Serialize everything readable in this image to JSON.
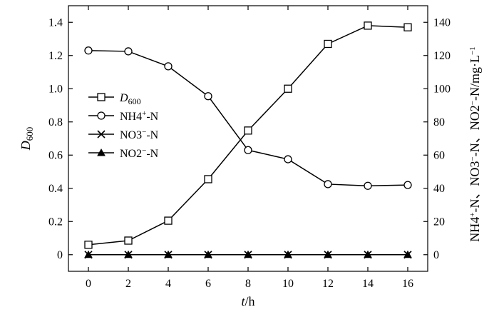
{
  "chart_data": {
    "type": "line",
    "x": [
      0,
      2,
      4,
      6,
      8,
      10,
      12,
      14,
      16
    ],
    "xlabel": "t/h",
    "xlim": [
      -1,
      17
    ],
    "xticks": [
      0,
      2,
      4,
      6,
      8,
      10,
      12,
      14,
      16
    ],
    "ylabel_left": "D600",
    "ylim_left": [
      -0.1,
      1.5
    ],
    "yticks_left": [
      0,
      0.2,
      0.4,
      0.6,
      0.8,
      1.0,
      1.2,
      1.4
    ],
    "ytick_labels_left": [
      "0",
      "0.2",
      "0.4",
      "0.6",
      "0.8",
      "1.0",
      "1.2",
      "1.4"
    ],
    "ylabel_right": "NH4+-N、NO3−-N、NO2−-N/mg·L−1",
    "ylim_right": [
      -10,
      150
    ],
    "yticks_right": [
      0,
      20,
      40,
      60,
      80,
      100,
      120,
      140
    ],
    "legend_position": "left-middle",
    "grid": false,
    "series": [
      {
        "name": "D600",
        "axis": "left",
        "marker": "open-square",
        "values": [
          0.06,
          0.085,
          0.205,
          0.455,
          0.748,
          1.0,
          1.27,
          1.38,
          1.37
        ]
      },
      {
        "name": "NH4+-N",
        "axis": "right",
        "marker": "open-circle",
        "values": [
          123,
          122.5,
          113.5,
          95.5,
          63,
          57.5,
          42.5,
          41.5,
          42
        ]
      },
      {
        "name": "NO3−-N",
        "axis": "right",
        "marker": "x",
        "values": [
          0,
          0,
          0,
          0,
          0,
          0,
          0,
          0,
          0
        ]
      },
      {
        "name": "NO2−-N",
        "axis": "right",
        "marker": "filled-triangle",
        "values": [
          0,
          0,
          0,
          0,
          0,
          0,
          0,
          0,
          0
        ]
      }
    ]
  }
}
